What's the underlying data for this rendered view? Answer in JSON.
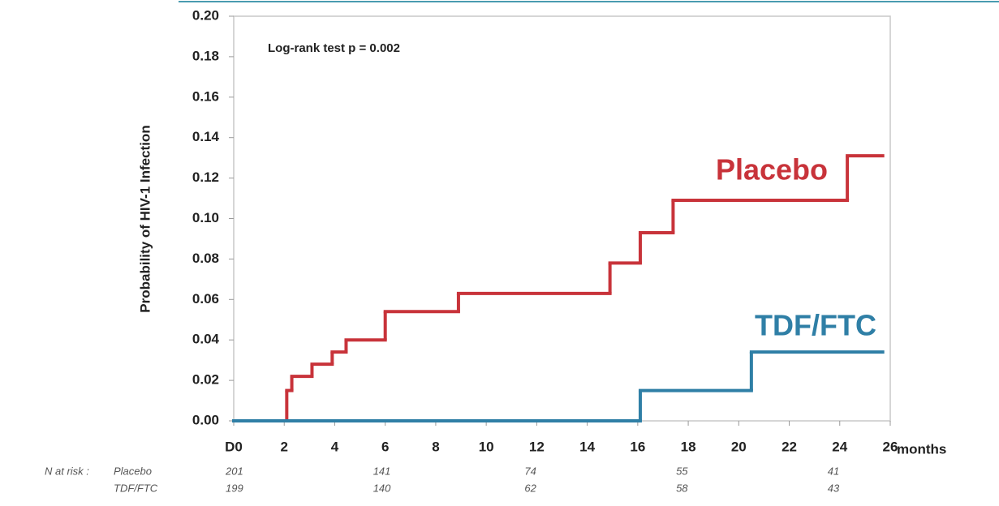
{
  "chart_data": {
    "type": "step",
    "annotation": "Log-rank test  p = 0.002",
    "ylabel": "Probability of HIV-1 Infection",
    "xlabel": "months",
    "xlim": [
      0,
      26
    ],
    "ylim": [
      0,
      0.2
    ],
    "xticks": [
      {
        "value": 0,
        "label": "D0"
      },
      2,
      4,
      6,
      8,
      10,
      12,
      14,
      16,
      18,
      20,
      22,
      24,
      26
    ],
    "yticks": [
      {
        "value": 0,
        "label": "0.00"
      },
      0.02,
      0.04,
      0.06,
      0.08,
      {
        "value": 0.1,
        "label": "0.10"
      },
      0.12,
      0.14,
      0.16,
      0.18,
      {
        "value": 0.2,
        "label": "0.20"
      }
    ],
    "series": [
      {
        "name": "Placebo",
        "color": "#c8333a",
        "x": [
          0,
          2.1,
          2.3,
          3.1,
          3.9,
          4.45,
          6.0,
          8.9,
          14.9,
          16.1,
          17.4,
          24.3,
          25.7
        ],
        "values": [
          0,
          0.015,
          0.022,
          0.028,
          0.034,
          0.04,
          0.054,
          0.063,
          0.078,
          0.093,
          0.109,
          0.131,
          0.131
        ],
        "at_risk": [
          201,
          141,
          74,
          55,
          41
        ]
      },
      {
        "name": "TDF/FTC",
        "color": "#2f7fa6",
        "x": [
          0,
          16.1,
          20.5,
          25.7
        ],
        "values": [
          0,
          0.015,
          0.034,
          0.034
        ],
        "at_risk": [
          199,
          140,
          62,
          58,
          43
        ]
      }
    ],
    "at_risk_label": "N at risk :"
  }
}
